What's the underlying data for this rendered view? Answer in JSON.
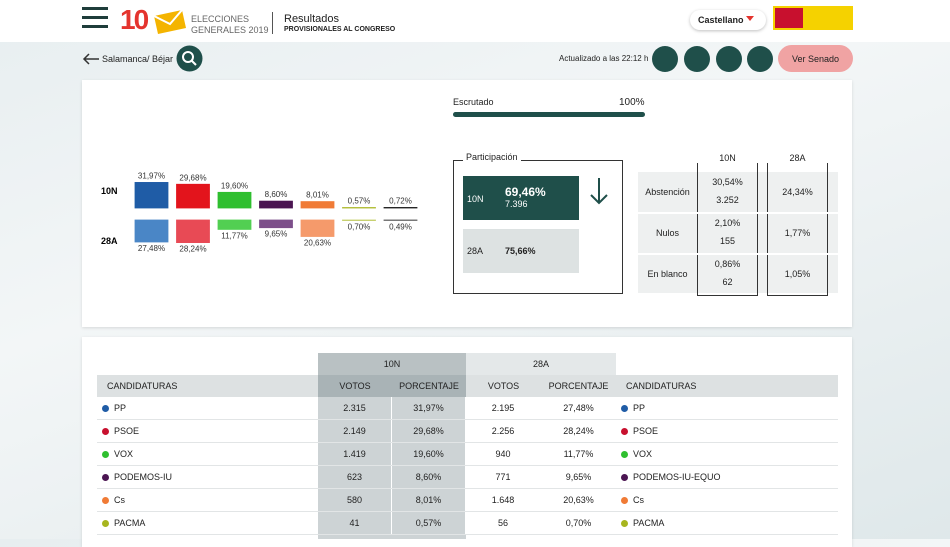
{
  "header": {
    "brand_number": "10",
    "brand_line1": "ELECCIONES",
    "brand_line2": "GENERALES 2019",
    "title": "Resultados",
    "subtitle": "PROVISIONALES AL CONGRESO",
    "language": "Castellano"
  },
  "nav": {
    "location": "Salamanca/ Béjar",
    "updated": "Actualizado a las 22:12 h",
    "senate_button": "Ver Senado"
  },
  "escrutado": {
    "label": "Escrutado",
    "value": 100,
    "value_label": "100%"
  },
  "chart": {
    "series": [
      {
        "name": "10N",
        "values": [
          31.97,
          29.68,
          19.6,
          8.6,
          8.01,
          0.57,
          0.72
        ],
        "value_labels": [
          "31,97%",
          "29,68%",
          "19,60%",
          "8,60%",
          "8,01%",
          "0,57%",
          "0,72%"
        ],
        "colors": [
          "#1f5ca6",
          "#e3141c",
          "#2fbf2f",
          "#4b1552",
          "#f07b36",
          "#a7b51f",
          "#222222"
        ]
      },
      {
        "name": "28A",
        "values": [
          27.48,
          28.24,
          11.77,
          9.65,
          20.63,
          0.7,
          0.49
        ],
        "value_labels": [
          "27,48%",
          "28,24%",
          "11,77%",
          "9,65%",
          "20,63%",
          "0,70%",
          "0,49%"
        ],
        "colors": [
          "#4a86c6",
          "#e84a55",
          "#52cf52",
          "#7d4f8a",
          "#f59a6b",
          "#c5cf6b",
          "#555555"
        ]
      }
    ]
  },
  "participation": {
    "title": "Participación",
    "current": {
      "label": "10N",
      "percent": "69,46%",
      "votes": "7.396"
    },
    "previous": {
      "label": "28A",
      "percent": "75,66%"
    }
  },
  "comparison": {
    "columns": [
      "10N",
      "28A"
    ],
    "rows": [
      {
        "label": "Abstención",
        "current": [
          "30,54%",
          "3.252"
        ],
        "previous": "24,34%"
      },
      {
        "label": "Nulos",
        "current": [
          "2,10%",
          "155"
        ],
        "previous": "1,77%"
      },
      {
        "label": "En blanco",
        "current": [
          "0,86%",
          "62"
        ],
        "previous": "1,05%"
      }
    ]
  },
  "table": {
    "groups": [
      "10N",
      "28A"
    ],
    "headers": [
      "CANDIDATURAS",
      "VOTOS",
      "PORCENTAJE",
      "VOTOS",
      "PORCENTAJE",
      "CANDIDATURAS"
    ],
    "rows": [
      {
        "name": "PP",
        "color": "#1f5ca6",
        "votes_10n": "2.315",
        "pct_10n": "31,97%",
        "votes_28a": "2.195",
        "pct_28a": "27,48%",
        "name_28a": "PP",
        "color_28a": "#1f5ca6"
      },
      {
        "name": "PSOE",
        "color": "#c8102e",
        "votes_10n": "2.149",
        "pct_10n": "29,68%",
        "votes_28a": "2.256",
        "pct_28a": "28,24%",
        "name_28a": "PSOE",
        "color_28a": "#c8102e"
      },
      {
        "name": "VOX",
        "color": "#2fbf2f",
        "votes_10n": "1.419",
        "pct_10n": "19,60%",
        "votes_28a": "940",
        "pct_28a": "11,77%",
        "name_28a": "VOX",
        "color_28a": "#2fbf2f"
      },
      {
        "name": "PODEMOS-IU",
        "color": "#4b1552",
        "votes_10n": "623",
        "pct_10n": "8,60%",
        "votes_28a": "771",
        "pct_28a": "9,65%",
        "name_28a": "PODEMOS-IU-EQUO",
        "color_28a": "#4b1552"
      },
      {
        "name": "Cs",
        "color": "#f07b36",
        "votes_10n": "580",
        "pct_10n": "8,01%",
        "votes_28a": "1.648",
        "pct_28a": "20,63%",
        "name_28a": "Cs",
        "color_28a": "#f07b36"
      },
      {
        "name": "PACMA",
        "color": "#a7b51f",
        "votes_10n": "41",
        "pct_10n": "0,57%",
        "votes_28a": "56",
        "pct_28a": "0,70%",
        "name_28a": "PACMA",
        "color_28a": "#a7b51f"
      }
    ]
  }
}
